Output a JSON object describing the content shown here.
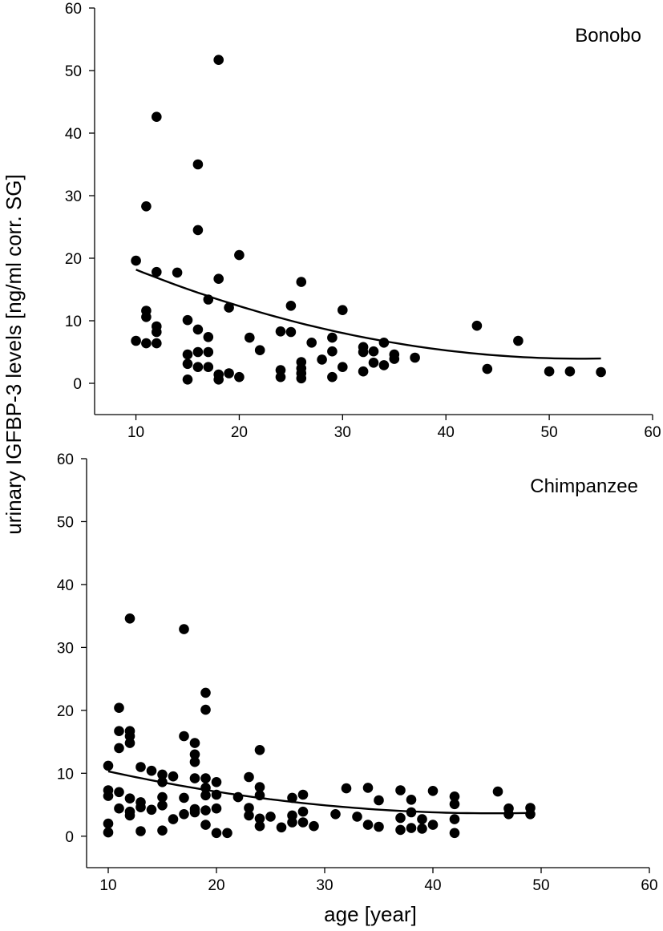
{
  "figure": {
    "ylabel": "urinary IGFBP-3 levels [ng/ml corr. SG]",
    "xlabel": "age [year]"
  },
  "chart_data": [
    {
      "type": "scatter",
      "title": "Bonobo",
      "xlim": [
        6,
        60
      ],
      "ylim": [
        -5,
        60
      ],
      "xticks": [
        10,
        20,
        30,
        40,
        50,
        60
      ],
      "yticks": [
        0,
        10,
        20,
        30,
        40,
        50,
        60
      ],
      "points": [
        [
          10,
          19.6
        ],
        [
          10,
          6.8
        ],
        [
          11,
          28.3
        ],
        [
          11,
          11.6
        ],
        [
          11,
          10.6
        ],
        [
          11,
          6.4
        ],
        [
          12,
          42.6
        ],
        [
          12,
          17.8
        ],
        [
          12,
          9.1
        ],
        [
          12,
          8.2
        ],
        [
          12,
          6.4
        ],
        [
          14,
          17.7
        ],
        [
          15,
          10.1
        ],
        [
          15,
          4.6
        ],
        [
          15,
          3.1
        ],
        [
          15,
          0.6
        ],
        [
          16,
          35.0
        ],
        [
          16,
          24.5
        ],
        [
          16,
          8.6
        ],
        [
          16,
          5.0
        ],
        [
          16,
          2.6
        ],
        [
          17,
          13.4
        ],
        [
          17,
          7.4
        ],
        [
          17,
          5.0
        ],
        [
          17,
          2.6
        ],
        [
          18,
          51.7
        ],
        [
          18,
          16.7
        ],
        [
          18,
          1.4
        ],
        [
          18,
          0.6
        ],
        [
          19,
          12.1
        ],
        [
          19,
          1.6
        ],
        [
          20,
          20.5
        ],
        [
          20,
          1.0
        ],
        [
          21,
          7.3
        ],
        [
          22,
          5.3
        ],
        [
          24,
          8.3
        ],
        [
          24,
          2.1
        ],
        [
          24,
          1.0
        ],
        [
          25,
          12.4
        ],
        [
          25,
          8.2
        ],
        [
          26,
          16.2
        ],
        [
          26,
          3.4
        ],
        [
          26,
          2.4
        ],
        [
          26,
          1.6
        ],
        [
          26,
          0.8
        ],
        [
          27,
          6.5
        ],
        [
          28,
          3.8
        ],
        [
          29,
          7.3
        ],
        [
          29,
          5.1
        ],
        [
          29,
          1.0
        ],
        [
          30,
          11.7
        ],
        [
          30,
          2.6
        ],
        [
          32,
          5.8
        ],
        [
          32,
          5.0
        ],
        [
          32,
          1.9
        ],
        [
          33,
          5.1
        ],
        [
          33,
          3.3
        ],
        [
          34,
          6.5
        ],
        [
          34,
          2.9
        ],
        [
          35,
          4.6
        ],
        [
          35,
          3.9
        ],
        [
          37,
          4.1
        ],
        [
          43,
          9.2
        ],
        [
          44,
          2.3
        ],
        [
          47,
          6.8
        ],
        [
          50,
          1.9
        ],
        [
          52,
          1.9
        ],
        [
          55,
          1.8
        ]
      ],
      "fit": {
        "type": "quadratic",
        "points": [
          [
            10,
            18.1
          ],
          [
            20,
            12.5
          ],
          [
            30,
            8.0
          ],
          [
            40,
            5.2
          ],
          [
            50,
            4.0
          ],
          [
            55,
            4.0
          ]
        ]
      }
    },
    {
      "type": "scatter",
      "title": "Chimpanzee",
      "xlim": [
        8,
        60
      ],
      "ylim": [
        -5,
        60
      ],
      "xticks": [
        10,
        20,
        30,
        40,
        50,
        60
      ],
      "yticks": [
        0,
        10,
        20,
        30,
        40,
        50,
        60
      ],
      "points": [
        [
          10,
          11.2
        ],
        [
          10,
          7.3
        ],
        [
          10,
          6.4
        ],
        [
          10,
          2.0
        ],
        [
          10,
          0.6
        ],
        [
          11,
          20.4
        ],
        [
          11,
          16.7
        ],
        [
          11,
          14.0
        ],
        [
          11,
          7.0
        ],
        [
          11,
          4.4
        ],
        [
          12,
          34.6
        ],
        [
          12,
          16.7
        ],
        [
          12,
          15.9
        ],
        [
          12,
          14.8
        ],
        [
          12,
          6.0
        ],
        [
          12,
          3.9
        ],
        [
          12,
          3.3
        ],
        [
          13,
          11.0
        ],
        [
          13,
          5.4
        ],
        [
          13,
          4.6
        ],
        [
          13,
          0.8
        ],
        [
          14,
          10.4
        ],
        [
          14,
          4.2
        ],
        [
          15,
          9.8
        ],
        [
          15,
          8.6
        ],
        [
          15,
          6.2
        ],
        [
          15,
          4.9
        ],
        [
          15,
          0.9
        ],
        [
          16,
          9.5
        ],
        [
          16,
          2.7
        ],
        [
          17,
          32.9
        ],
        [
          17,
          15.9
        ],
        [
          17,
          6.1
        ],
        [
          17,
          3.5
        ],
        [
          18,
          14.8
        ],
        [
          18,
          13.0
        ],
        [
          18,
          11.8
        ],
        [
          18,
          9.2
        ],
        [
          18,
          4.3
        ],
        [
          18,
          3.8
        ],
        [
          19,
          22.8
        ],
        [
          19,
          20.1
        ],
        [
          19,
          9.2
        ],
        [
          19,
          7.7
        ],
        [
          19,
          6.5
        ],
        [
          19,
          4.1
        ],
        [
          19,
          1.8
        ],
        [
          20,
          8.6
        ],
        [
          20,
          6.6
        ],
        [
          20,
          4.4
        ],
        [
          20,
          0.5
        ],
        [
          21,
          0.5
        ],
        [
          22,
          6.2
        ],
        [
          23,
          9.4
        ],
        [
          23,
          4.5
        ],
        [
          23,
          3.3
        ],
        [
          24,
          13.7
        ],
        [
          24,
          7.8
        ],
        [
          24,
          6.5
        ],
        [
          24,
          2.8
        ],
        [
          24,
          1.6
        ],
        [
          25,
          3.1
        ],
        [
          26,
          1.4
        ],
        [
          27,
          6.1
        ],
        [
          27,
          3.3
        ],
        [
          27,
          2.2
        ],
        [
          28,
          6.6
        ],
        [
          28,
          3.9
        ],
        [
          28,
          2.2
        ],
        [
          29,
          1.6
        ],
        [
          31,
          3.5
        ],
        [
          32,
          7.6
        ],
        [
          33,
          3.1
        ],
        [
          34,
          7.7
        ],
        [
          34,
          1.8
        ],
        [
          35,
          5.7
        ],
        [
          35,
          1.5
        ],
        [
          37,
          7.3
        ],
        [
          37,
          2.9
        ],
        [
          37,
          1.0
        ],
        [
          38,
          5.8
        ],
        [
          38,
          3.8
        ],
        [
          38,
          1.3
        ],
        [
          39,
          2.7
        ],
        [
          39,
          1.2
        ],
        [
          40,
          7.2
        ],
        [
          40,
          1.8
        ],
        [
          42,
          6.3
        ],
        [
          42,
          5.1
        ],
        [
          42,
          2.7
        ],
        [
          42,
          0.5
        ],
        [
          46,
          7.1
        ],
        [
          47,
          4.4
        ],
        [
          47,
          3.5
        ],
        [
          49,
          4.5
        ],
        [
          49,
          3.5
        ]
      ],
      "fit": {
        "type": "quadratic",
        "points": [
          [
            10,
            10.3
          ],
          [
            20,
            7.1
          ],
          [
            30,
            4.9
          ],
          [
            40,
            3.8
          ],
          [
            49,
            3.7
          ]
        ]
      }
    }
  ]
}
